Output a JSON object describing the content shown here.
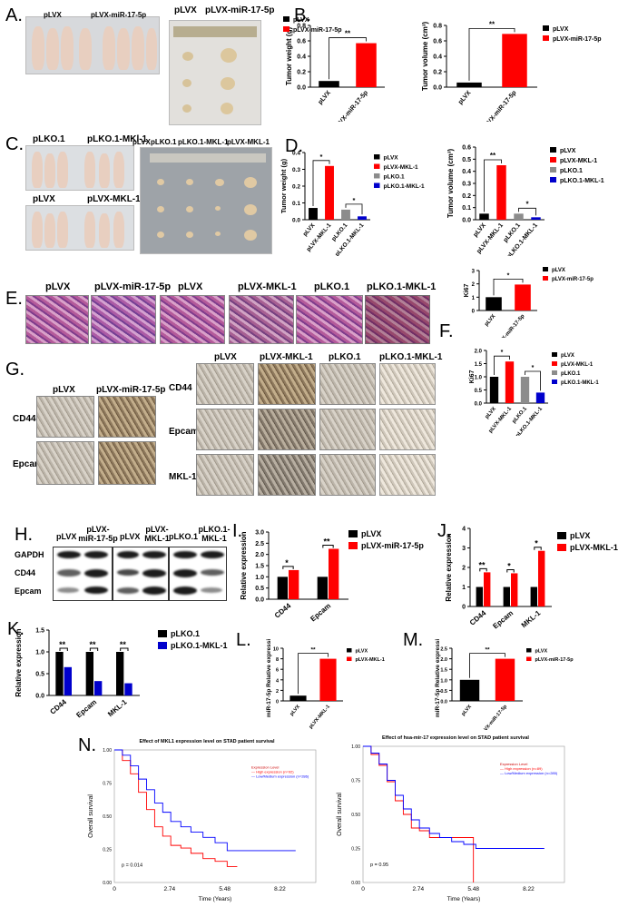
{
  "panels": {
    "A": {
      "letter": "A.",
      "photo_labels": [
        "pLVX",
        "pLVX-miR-17-5p"
      ],
      "tumor_labels": [
        "pLVX",
        "pLVX-miR-17-5p"
      ]
    },
    "C": {
      "letter": "C.",
      "mouse_labels_top": [
        "pLKO.1",
        "pLKO.1-MKl-1"
      ],
      "mouse_labels_bottom": [
        "pLVX",
        "pLVX-MKL-1"
      ],
      "tumor_labels": [
        "pLVX",
        "pLKO.1",
        "pLKO.1-MKL-1",
        "pLVX-MKL-1"
      ]
    },
    "E": {
      "letter": "E.",
      "labels": [
        "pLVX",
        "pLVX-miR-17-5p",
        "pLVX",
        "pLVX-MKL-1",
        "pLKO.1",
        "pLKO.1-MKL-1"
      ]
    },
    "G": {
      "letter": "G.",
      "left_cols": [
        "pLVX",
        "pLVX-miR-17-5p"
      ],
      "left_rows": [
        "CD44",
        "Epcam"
      ],
      "right_cols": [
        "pLVX",
        "pLVX-MKL-1",
        "pLKO.1",
        "pLKO.1-MKL-1"
      ],
      "right_rows": [
        "CD44",
        "Epcam",
        "MKL-1"
      ]
    },
    "H": {
      "letter": "H.",
      "cols": [
        "pLVX",
        "pLVX-miR-17-5p",
        "pLVX",
        "pLVX-MKL-1",
        "pLKO.1",
        "pLKO.1-MKL-1"
      ],
      "rows": [
        "GAPDH",
        "CD44",
        "Epcam"
      ]
    },
    "B": {
      "letter": "B."
    },
    "D": {
      "letter": "D."
    },
    "F": {
      "letter": "F."
    },
    "I": {
      "letter": "I."
    },
    "J": {
      "letter": "J."
    },
    "K": {
      "letter": "K."
    },
    "L": {
      "letter": "L."
    },
    "M": {
      "letter": "M."
    },
    "N": {
      "letter": "N."
    }
  },
  "chart_data": [
    {
      "id": "B1",
      "type": "bar",
      "categories": [
        "pLVX",
        "pLVX-miR-17-5p"
      ],
      "values": [
        0.08,
        0.57
      ],
      "colors": [
        "#000000",
        "#ff0000"
      ],
      "ylabel": "Tumor weight (g)",
      "ylim": [
        0,
        0.8
      ],
      "yticks": [
        "0.0",
        "0.2",
        "0.4",
        "0.6",
        "0.8"
      ],
      "significance": "**",
      "legend": [
        "pLVX",
        "pLVX-miR-17-5p"
      ]
    },
    {
      "id": "B2",
      "type": "bar",
      "categories": [
        "pLVX",
        "pLVX-miR-17-5p"
      ],
      "values": [
        0.06,
        0.69
      ],
      "colors": [
        "#000000",
        "#ff0000"
      ],
      "ylabel": "Tumor volume (cm³)",
      "ylim": [
        0,
        0.8
      ],
      "yticks": [
        "0.0",
        "0.2",
        "0.4",
        "0.6",
        "0.8"
      ],
      "significance": "**",
      "legend": [
        "pLVX",
        "pLVX-miR-17-5p"
      ]
    },
    {
      "id": "D1",
      "type": "bar",
      "categories": [
        "pLVX",
        "pLVX-MKL-1",
        "pLKO.1",
        "pLKO.1-MKL-1"
      ],
      "values": [
        0.07,
        0.32,
        0.06,
        0.02
      ],
      "colors": [
        "#000000",
        "#ff0000",
        "#8c8c8c",
        "#0000cc"
      ],
      "ylabel": "Tumor weight (g)",
      "ylim": [
        0,
        0.4
      ],
      "yticks": [
        "0.0",
        "0.1",
        "0.2",
        "0.3",
        "0.4"
      ],
      "sig": [
        {
          "a": 0,
          "b": 1,
          "text": "*"
        },
        {
          "a": 2,
          "b": 3,
          "text": "*"
        }
      ],
      "legend": [
        "pLVX",
        "pLVX-MKL-1",
        "pLKO.1",
        "pLKO.1-MKL-1"
      ]
    },
    {
      "id": "D2",
      "type": "bar",
      "categories": [
        "pLVX",
        "pLVX-MKL-1",
        "pLKO.1",
        "pLKO.1-MKL-1"
      ],
      "values": [
        0.05,
        0.45,
        0.05,
        0.02
      ],
      "colors": [
        "#000000",
        "#ff0000",
        "#8c8c8c",
        "#0000cc"
      ],
      "ylabel": "Tumor volume (cm³)",
      "ylim": [
        0,
        0.6
      ],
      "yticks": [
        "0.0",
        "0.1",
        "0.2",
        "0.3",
        "0.4",
        "0.5",
        "0.6"
      ],
      "sig": [
        {
          "a": 0,
          "b": 1,
          "text": "**"
        },
        {
          "a": 2,
          "b": 3,
          "text": "*"
        }
      ],
      "legend": [
        "pLVX",
        "pLVX-MKL-1",
        "pLKO.1",
        "pLKO.1-MKL-1"
      ]
    },
    {
      "id": "E_ki67",
      "type": "bar",
      "categories": [
        "pLVX",
        "pLVX-miR-17-5p"
      ],
      "values": [
        1.0,
        1.95
      ],
      "colors": [
        "#000000",
        "#ff0000"
      ],
      "ylabel": "Ki67",
      "ylim": [
        0,
        3
      ],
      "yticks": [
        "0",
        "1",
        "2",
        "3"
      ],
      "significance": "*",
      "legend": [
        "pLVX",
        "pLVX-miR-17-5p"
      ]
    },
    {
      "id": "F",
      "type": "bar",
      "categories": [
        "pLVX",
        "pLVX-MKL-1",
        "pLKO.1",
        "pLKO.1-MKL-1"
      ],
      "values": [
        1.0,
        1.58,
        1.0,
        0.4
      ],
      "colors": [
        "#000000",
        "#ff0000",
        "#8c8c8c",
        "#0000cc"
      ],
      "ylabel": "Ki67",
      "ylim": [
        0,
        2.0
      ],
      "yticks": [
        "0.0",
        "0.5",
        "1.0",
        "1.5",
        "2.0"
      ],
      "sig": [
        {
          "a": 0,
          "b": 1,
          "text": "*"
        },
        {
          "a": 2,
          "b": 3,
          "text": "*"
        }
      ],
      "legend": [
        "pLVX",
        "pLVX-MKL-1",
        "pLKO.1",
        "pLKO.1-MKL-1"
      ]
    },
    {
      "id": "I",
      "type": "bar",
      "categories": [
        "CD44",
        "Epcam"
      ],
      "series": [
        {
          "name": "pLVX",
          "values": [
            1.0,
            1.0
          ],
          "color": "#000000"
        },
        {
          "name": "pLVX-miR-17-5p",
          "values": [
            1.3,
            2.25
          ],
          "color": "#ff0000"
        }
      ],
      "ylabel": "Relative expression",
      "ylim": [
        0,
        3.0
      ],
      "yticks": [
        "0.0",
        "0.5",
        "1.0",
        "1.5",
        "2.0",
        "2.5",
        "3.0"
      ],
      "sig": [
        "*",
        "**"
      ]
    },
    {
      "id": "J",
      "type": "bar",
      "categories": [
        "CD44",
        "Epcam",
        "MKL-1"
      ],
      "series": [
        {
          "name": "pLVX",
          "values": [
            1.0,
            1.0,
            1.0
          ],
          "color": "#000000"
        },
        {
          "name": "pLVX-MKL-1",
          "values": [
            1.75,
            1.7,
            2.85
          ],
          "color": "#ff0000"
        }
      ],
      "ylabel": "Relative expression",
      "ylim": [
        0,
        4
      ],
      "yticks": [
        "0",
        "1",
        "2",
        "3",
        "4"
      ],
      "sig": [
        "**",
        "*",
        "*"
      ]
    },
    {
      "id": "K",
      "type": "bar",
      "categories": [
        "CD44",
        "Epcam",
        "MKL-1"
      ],
      "series": [
        {
          "name": "pLKO.1",
          "values": [
            1.0,
            1.0,
            1.0
          ],
          "color": "#000000"
        },
        {
          "name": "pLKO.1-MKL-1",
          "values": [
            0.65,
            0.33,
            0.28
          ],
          "color": "#0000cc"
        }
      ],
      "ylabel": "Relative expression",
      "ylim": [
        0,
        1.5
      ],
      "yticks": [
        "0.0",
        "0.5",
        "1.0",
        "1.5"
      ],
      "sig": [
        "**",
        "**",
        "**"
      ]
    },
    {
      "id": "L",
      "type": "bar",
      "categories": [
        "pLVX",
        "pLVX-MKL-1"
      ],
      "values": [
        1.0,
        8.0
      ],
      "colors": [
        "#000000",
        "#ff0000"
      ],
      "ylabel": "miR-17-5p Relative expression",
      "ylim": [
        0,
        10
      ],
      "yticks": [
        "0",
        "2",
        "4",
        "6",
        "8",
        "10"
      ],
      "significance": "**",
      "legend": [
        "pLVX",
        "pLVX-MKL-1"
      ]
    },
    {
      "id": "M",
      "type": "bar",
      "categories": [
        "pLVX",
        "pLVX-miR-17-5p"
      ],
      "values": [
        1.0,
        2.0
      ],
      "colors": [
        "#000000",
        "#ff0000"
      ],
      "ylabel": "miR-17-5p Relative expression",
      "ylim": [
        0,
        2.5
      ],
      "yticks": [
        "0.0",
        "0.5",
        "1.0",
        "1.5",
        "2.0",
        "2.5"
      ],
      "significance": "**",
      "legend": [
        "pLVX",
        "pLVX-miR-17-5p"
      ]
    },
    {
      "id": "N1",
      "type": "line",
      "title": "Effect of MKL1 expression level on STAD patient survival",
      "xlabel": "Time (Years)",
      "ylabel": "Overall survival",
      "xticks": [
        "0",
        "2.74",
        "5.48",
        "8.22"
      ],
      "yticks": [
        "0.00",
        "0.25",
        "0.50",
        "0.75",
        "1.00"
      ],
      "legend_title": "Expression Level",
      "legend": [
        "High expression (n=92)",
        "Low/Medium expression (n=286)"
      ],
      "pvalue": "p = 0.014",
      "series": [
        {
          "name": "High expression (n=92)",
          "color": "#ff0000",
          "x": [
            0,
            0.4,
            0.8,
            1.2,
            1.6,
            2.0,
            2.4,
            2.8,
            3.3,
            3.8,
            4.4,
            5.0,
            5.6,
            6.1
          ],
          "y": [
            1.0,
            0.92,
            0.82,
            0.68,
            0.55,
            0.42,
            0.35,
            0.28,
            0.26,
            0.22,
            0.18,
            0.16,
            0.12,
            0.12
          ]
        },
        {
          "name": "Low/Medium expression (n=286)",
          "color": "#0000ff",
          "x": [
            0,
            0.4,
            0.8,
            1.2,
            1.6,
            2.0,
            2.4,
            2.8,
            3.3,
            3.8,
            4.4,
            5.0,
            5.6,
            6.5,
            7.5,
            8.22,
            9.0
          ],
          "y": [
            1.0,
            0.96,
            0.88,
            0.78,
            0.7,
            0.6,
            0.53,
            0.46,
            0.42,
            0.38,
            0.34,
            0.3,
            0.24,
            0.24,
            0.24,
            0.24,
            0.24
          ]
        }
      ]
    },
    {
      "id": "N2",
      "type": "line",
      "title": "Effect of hsa-mir-17 expression level on STAD patient survival",
      "xlabel": "Time (Years)",
      "ylabel": "Overall survival",
      "xticks": [
        "0",
        "2.74",
        "5.48",
        "8.22"
      ],
      "yticks": [
        "0.00",
        "0.25",
        "0.50",
        "0.75",
        "1.00"
      ],
      "legend_title": "Expression Level",
      "legend": [
        "High expression (n=89)",
        "Low/Medium expression (n=285)"
      ],
      "pvalue": "p = 0.95",
      "series": [
        {
          "name": "High expression (n=89)",
          "color": "#ff0000",
          "x": [
            0,
            0.4,
            0.8,
            1.2,
            1.6,
            2.0,
            2.4,
            2.8,
            3.3,
            3.8,
            4.4,
            5.0,
            5.4,
            5.48
          ],
          "y": [
            1.0,
            0.94,
            0.86,
            0.74,
            0.6,
            0.5,
            0.4,
            0.38,
            0.33,
            0.33,
            0.33,
            0.33,
            0.33,
            0.0
          ]
        },
        {
          "name": "Low/Medium expression (n=285)",
          "color": "#0000ff",
          "x": [
            0,
            0.4,
            0.8,
            1.2,
            1.6,
            2.0,
            2.4,
            2.8,
            3.3,
            3.8,
            4.4,
            5.0,
            5.6,
            6.5,
            7.5,
            8.22,
            9.0
          ],
          "y": [
            1.0,
            0.95,
            0.87,
            0.75,
            0.64,
            0.54,
            0.46,
            0.4,
            0.36,
            0.33,
            0.3,
            0.28,
            0.25,
            0.25,
            0.25,
            0.25,
            0.25
          ]
        }
      ]
    }
  ]
}
